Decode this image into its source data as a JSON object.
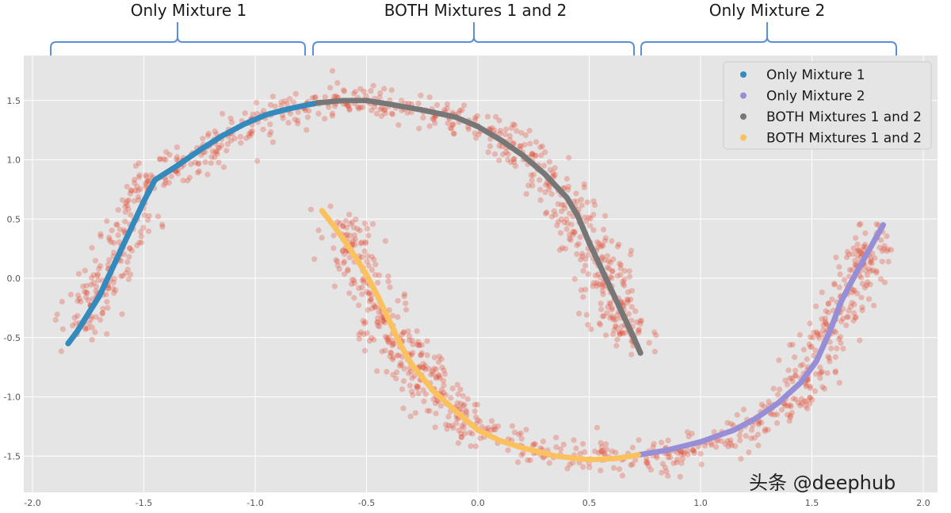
{
  "annotations": {
    "left": "Only Mixture 1",
    "middle": "BOTH Mixtures 1 and 2",
    "right": "Only Mixture 2",
    "brace_color": "#5b8fd6"
  },
  "watermark": "头条 @deephub",
  "chart_data": {
    "type": "scatter",
    "title": "",
    "xlabel": "",
    "ylabel": "",
    "xlim": [
      -2.05,
      2.05
    ],
    "ylim": [
      -1.8,
      1.9
    ],
    "xticks": [
      -2.0,
      -1.5,
      -1.0,
      -0.5,
      0.0,
      0.5,
      1.0,
      1.5,
      2.0
    ],
    "xtick_labels": [
      "-2.0",
      "-1.5",
      "-1.0",
      "-0.5",
      "0.0",
      "0.5",
      "1.0",
      "1.5",
      "2.0"
    ],
    "yticks": [
      -1.5,
      -1.0,
      -0.5,
      0.0,
      0.5,
      1.0,
      1.5
    ],
    "ytick_labels": [
      "-1.5",
      "-1.0",
      "-0.5",
      "0.0",
      "0.5",
      "1.0",
      "1.5"
    ],
    "grid": true,
    "background": "#e5e5e5",
    "legend_position": "top-right",
    "noisy_points": {
      "color": "#e24a33",
      "opacity": 0.3,
      "count": 1600,
      "noise": 0.06,
      "upper_moon": [
        [
          -1.8,
          -0.45
        ],
        [
          -1.7,
          -0.1
        ],
        [
          -1.6,
          0.3
        ],
        [
          -1.5,
          0.75
        ],
        [
          -1.45,
          0.85
        ],
        [
          -1.3,
          1.0
        ],
        [
          -1.1,
          1.2
        ],
        [
          -1.0,
          1.35
        ],
        [
          -0.8,
          1.45
        ],
        [
          -0.5,
          1.5
        ],
        [
          -0.2,
          1.4
        ],
        [
          0.0,
          1.28
        ],
        [
          0.15,
          1.15
        ],
        [
          0.3,
          0.9
        ],
        [
          0.45,
          0.5
        ],
        [
          0.55,
          0.1
        ],
        [
          0.6,
          -0.2
        ],
        [
          0.7,
          -0.55
        ]
      ],
      "lower_moon": [
        [
          -0.6,
          0.5
        ],
        [
          -0.55,
          0.2
        ],
        [
          -0.5,
          -0.1
        ],
        [
          -0.4,
          -0.45
        ],
        [
          -0.3,
          -0.75
        ],
        [
          -0.15,
          -1.05
        ],
        [
          0.0,
          -1.28
        ],
        [
          0.2,
          -1.42
        ],
        [
          0.4,
          -1.5
        ],
        [
          0.7,
          -1.5
        ],
        [
          0.8,
          -1.5
        ],
        [
          1.0,
          -1.45
        ],
        [
          1.2,
          -1.3
        ],
        [
          1.4,
          -1.05
        ],
        [
          1.5,
          -0.8
        ],
        [
          1.55,
          -0.5
        ],
        [
          1.65,
          -0.15
        ],
        [
          1.75,
          0.2
        ],
        [
          1.78,
          0.4
        ]
      ]
    },
    "series": [
      {
        "name": "Only Mixture 1",
        "color": "#348abd",
        "points": [
          [
            -1.84,
            -0.55
          ],
          [
            -1.8,
            -0.45
          ],
          [
            -1.75,
            -0.3
          ],
          [
            -1.7,
            -0.15
          ],
          [
            -1.65,
            0.05
          ],
          [
            -1.6,
            0.25
          ],
          [
            -1.55,
            0.45
          ],
          [
            -1.5,
            0.65
          ],
          [
            -1.45,
            0.83
          ],
          [
            -1.35,
            0.95
          ],
          [
            -1.25,
            1.08
          ],
          [
            -1.15,
            1.2
          ],
          [
            -1.05,
            1.3
          ],
          [
            -0.95,
            1.38
          ],
          [
            -0.85,
            1.43
          ],
          [
            -0.72,
            1.48
          ]
        ]
      },
      {
        "name": "Only Mixture 2",
        "color": "#988ed5",
        "points": [
          [
            0.72,
            -1.49
          ],
          [
            0.85,
            -1.45
          ],
          [
            1.0,
            -1.38
          ],
          [
            1.15,
            -1.28
          ],
          [
            1.25,
            -1.18
          ],
          [
            1.35,
            -1.05
          ],
          [
            1.45,
            -0.88
          ],
          [
            1.52,
            -0.7
          ],
          [
            1.58,
            -0.45
          ],
          [
            1.63,
            -0.2
          ],
          [
            1.7,
            0.05
          ],
          [
            1.76,
            0.25
          ],
          [
            1.82,
            0.45
          ]
        ]
      },
      {
        "name": "BOTH Mixtures 1 and 2",
        "color": "#777777",
        "points": [
          [
            -0.72,
            1.48
          ],
          [
            -0.6,
            1.5
          ],
          [
            -0.5,
            1.5
          ],
          [
            -0.4,
            1.47
          ],
          [
            -0.25,
            1.42
          ],
          [
            -0.1,
            1.36
          ],
          [
            0.0,
            1.28
          ],
          [
            0.1,
            1.17
          ],
          [
            0.2,
            1.04
          ],
          [
            0.3,
            0.88
          ],
          [
            0.4,
            0.68
          ],
          [
            0.45,
            0.52
          ],
          [
            0.5,
            0.3
          ],
          [
            0.55,
            0.1
          ],
          [
            0.6,
            -0.1
          ],
          [
            0.65,
            -0.3
          ],
          [
            0.7,
            -0.5
          ],
          [
            0.73,
            -0.63
          ]
        ]
      },
      {
        "name": "BOTH Mixtures 1 and 2",
        "color": "#fbc15e",
        "points": [
          [
            -0.7,
            0.57
          ],
          [
            -0.65,
            0.45
          ],
          [
            -0.6,
            0.32
          ],
          [
            -0.55,
            0.18
          ],
          [
            -0.5,
            0.03
          ],
          [
            -0.45,
            -0.15
          ],
          [
            -0.4,
            -0.35
          ],
          [
            -0.35,
            -0.55
          ],
          [
            -0.3,
            -0.72
          ],
          [
            -0.2,
            -0.95
          ],
          [
            -0.1,
            -1.12
          ],
          [
            0.0,
            -1.28
          ],
          [
            0.1,
            -1.37
          ],
          [
            0.2,
            -1.43
          ],
          [
            0.35,
            -1.5
          ],
          [
            0.5,
            -1.53
          ],
          [
            0.62,
            -1.52
          ],
          [
            0.72,
            -1.49
          ]
        ]
      }
    ]
  }
}
